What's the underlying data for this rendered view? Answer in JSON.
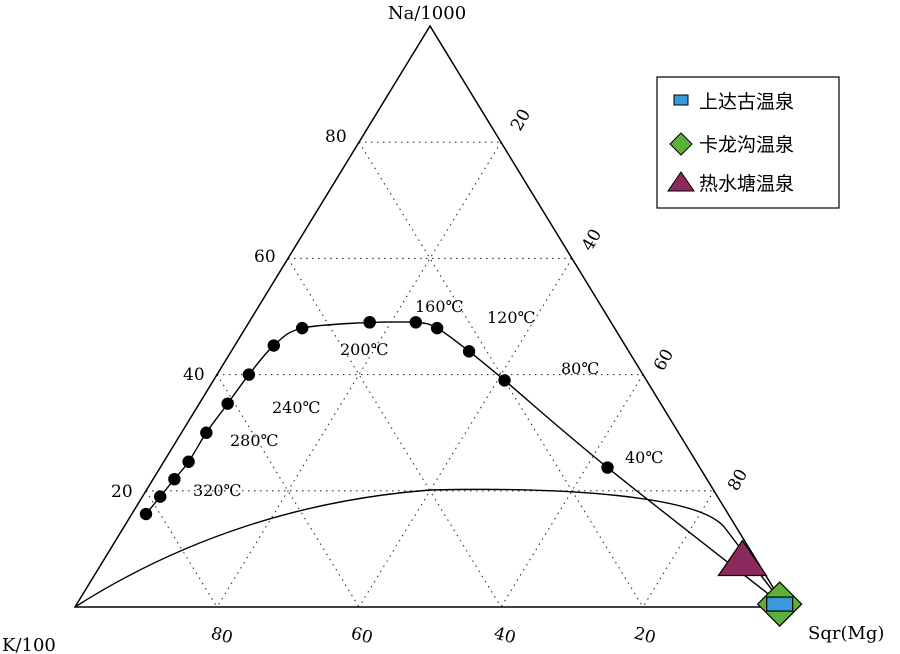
{
  "chart_data": {
    "type": "scatter",
    "vertices": {
      "top": "Na/1000",
      "left": "K/100",
      "right": "Sqr(Mg)"
    },
    "left_edge_ticks": [
      "80",
      "60",
      "40",
      "20"
    ],
    "right_edge_ticks": [
      "20",
      "40",
      "60",
      "80"
    ],
    "bottom_edge_ticks": [
      "80",
      "60",
      "40",
      "20"
    ],
    "gridlines": "dotted",
    "full_equilibrium_curve": {
      "points": [
        {
          "na": 16,
          "k": 82,
          "mg": 2
        },
        {
          "na": 19,
          "k": 78.5,
          "mg": 2.5
        },
        {
          "na": 22,
          "k": 75,
          "mg": 3
        },
        {
          "na": 25,
          "k": 71.5,
          "mg": 3.5
        },
        {
          "na": 30,
          "k": 66.5,
          "mg": 3.5
        },
        {
          "na": 35,
          "k": 61,
          "mg": 4
        },
        {
          "na": 40,
          "k": 55.5,
          "mg": 4.5
        },
        {
          "na": 45,
          "k": 49.5,
          "mg": 5.5
        },
        {
          "na": 48,
          "k": 44,
          "mg": 8
        },
        {
          "na": 49,
          "k": 34,
          "mg": 17
        },
        {
          "na": 49,
          "k": 34,
          "mg": 17
        },
        {
          "na": 49,
          "k": 27.5,
          "mg": 23.5
        },
        {
          "na": 48,
          "k": 25,
          "mg": 27
        },
        {
          "na": 44,
          "k": 22.5,
          "mg": 33.5
        },
        {
          "na": 39,
          "k": 20,
          "mg": 41
        },
        {
          "na": 24,
          "k": 13,
          "mg": 63
        }
      ]
    },
    "temperature_labels": [
      "320℃",
      "280℃",
      "240℃",
      "200℃",
      "160℃",
      "120℃",
      "80℃",
      "40℃"
    ],
    "partial_equilibrium_line": "curve from K/100 vertex to Sqr(Mg) vertex",
    "samples": [
      {
        "name": "上达古温泉",
        "marker": "square",
        "color": "#3a9ad9",
        "na": 0.5,
        "k": 0.5,
        "mg": 99
      },
      {
        "name": "卡龙沟温泉",
        "marker": "diamond",
        "color": "#5db13a",
        "na": 0.5,
        "k": 0.5,
        "mg": 99
      },
      {
        "name": "热水塘温泉",
        "marker": "triangle",
        "color": "#8c2a5e",
        "na": 8,
        "k": 2,
        "mg": 90
      }
    ],
    "legend": {
      "position": "top-right",
      "entries": [
        "上达古温泉",
        "卡龙沟温泉",
        "热水塘温泉"
      ]
    }
  }
}
